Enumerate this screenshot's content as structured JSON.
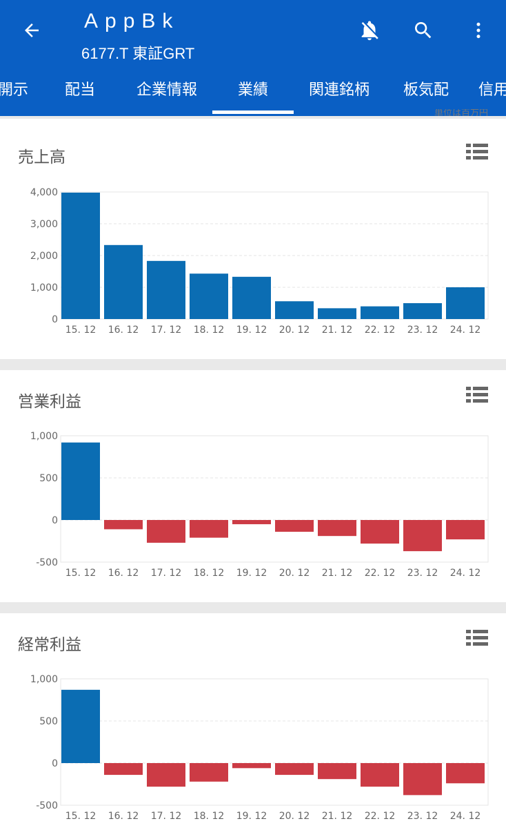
{
  "header": {
    "title": "AppBk",
    "subtitle": "6177.T 東証GRT",
    "icons": [
      "arrow-back-icon",
      "bell-off-icon",
      "search-icon",
      "more-vert-icon"
    ]
  },
  "tabs": [
    {
      "label": "開示"
    },
    {
      "label": "配当"
    },
    {
      "label": "企業情報"
    },
    {
      "label": "業績",
      "active": true
    },
    {
      "label": "関連銘柄"
    },
    {
      "label": "板気配"
    },
    {
      "label": "信用"
    }
  ],
  "unit_note": "単位は百万円",
  "colors": {
    "appbar": "#0a5fc4",
    "positive": "#0b6db3",
    "negative": "#cc3b45"
  },
  "charts": [
    {
      "title": "売上高",
      "chart_data": {
        "type": "bar",
        "categories": [
          "15. 12",
          "16. 12",
          "17. 12",
          "18. 12",
          "19. 12",
          "20. 12",
          "21. 12",
          "22. 12",
          "23. 12",
          "24. 12"
        ],
        "values": [
          3980,
          2330,
          1830,
          1430,
          1330,
          560,
          340,
          400,
          500,
          1000
        ],
        "ylim": [
          0,
          4000
        ],
        "yticks": [
          "4,000",
          "3,000",
          "2,000",
          "1,000",
          "0"
        ],
        "ytick_values": [
          4000,
          3000,
          2000,
          1000,
          0
        ],
        "grid": true
      }
    },
    {
      "title": "営業利益",
      "chart_data": {
        "type": "bar",
        "categories": [
          "15. 12",
          "16. 12",
          "17. 12",
          "18. 12",
          "19. 12",
          "20. 12",
          "21. 12",
          "22. 12",
          "23. 12",
          "24. 12"
        ],
        "values": [
          920,
          -110,
          -270,
          -210,
          -50,
          -140,
          -190,
          -280,
          -370,
          -230
        ],
        "ylim": [
          -500,
          1000
        ],
        "yticks": [
          "1,000",
          "500",
          "0",
          "-500"
        ],
        "ytick_values": [
          1000,
          500,
          0,
          -500
        ],
        "grid": true
      }
    },
    {
      "title": "経常利益",
      "chart_data": {
        "type": "bar",
        "categories": [
          "15. 12",
          "16. 12",
          "17. 12",
          "18. 12",
          "19. 12",
          "20. 12",
          "21. 12",
          "22. 12",
          "23. 12",
          "24. 12"
        ],
        "values": [
          870,
          -140,
          -280,
          -220,
          -60,
          -140,
          -190,
          -280,
          -380,
          -240
        ],
        "ylim": [
          -500,
          1000
        ],
        "yticks": [
          "1,000",
          "500",
          "0",
          "-500"
        ],
        "ytick_values": [
          1000,
          500,
          0,
          -500
        ],
        "grid": true
      }
    }
  ]
}
